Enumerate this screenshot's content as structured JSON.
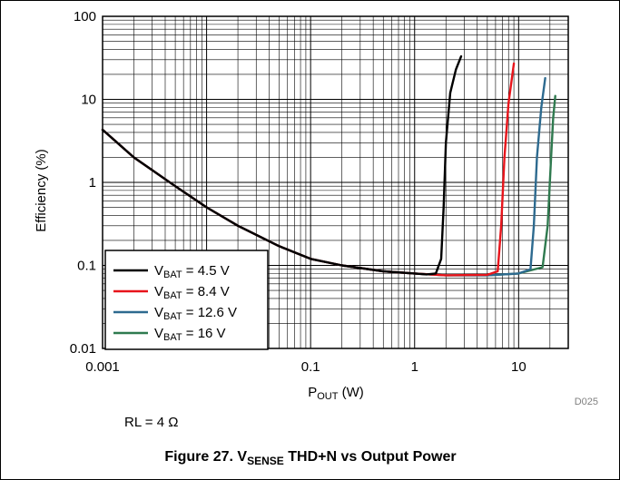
{
  "chart_data": {
    "type": "line",
    "x_scale": "log",
    "y_scale": "log",
    "xlim": [
      0.001,
      30
    ],
    "ylim": [
      0.01,
      100
    ],
    "grid": true,
    "legend_position": "bottom-left",
    "x_ticks": [
      "0.001",
      "0.1",
      "1",
      "10"
    ],
    "y_ticks": [
      "100",
      "10",
      "1",
      "0.1",
      "0.01"
    ],
    "xlabel": {
      "main": "P",
      "sub": "OUT",
      "rest": " (W)"
    },
    "ylabel": "Efficiency (%)",
    "code": "D025",
    "note": "RL = 4 Ω",
    "caption": {
      "pre": "Figure 27. V",
      "sub": "SENSE",
      "post": " THD+N vs Output Power"
    },
    "series": [
      {
        "name": {
          "main": "V",
          "sub": "BAT",
          "rest": " = 4.5 V"
        },
        "color": "#000000",
        "x": [
          0.001,
          0.002,
          0.005,
          0.01,
          0.02,
          0.05,
          0.1,
          0.2,
          0.5,
          1,
          1.3,
          1.6,
          1.8,
          1.9,
          2.0,
          2.2,
          2.5,
          2.8
        ],
        "y": [
          4.3,
          2.0,
          0.9,
          0.5,
          0.3,
          0.17,
          0.12,
          0.1,
          0.085,
          0.08,
          0.078,
          0.08,
          0.12,
          0.5,
          3.0,
          12,
          23,
          33
        ]
      },
      {
        "name": {
          "main": "V",
          "sub": "BAT",
          "rest": " = 8.4 V"
        },
        "color": "#e8141b",
        "x": [
          0.001,
          0.002,
          0.005,
          0.01,
          0.02,
          0.05,
          0.1,
          0.2,
          0.5,
          1,
          2,
          5,
          6.3,
          6.8,
          7.3,
          8,
          9
        ],
        "y": [
          4.3,
          2.0,
          0.9,
          0.5,
          0.3,
          0.17,
          0.12,
          0.1,
          0.085,
          0.08,
          0.076,
          0.077,
          0.085,
          0.3,
          2.0,
          9,
          27
        ]
      },
      {
        "name": {
          "main": "V",
          "sub": "BAT",
          "rest": " = 12.6 V"
        },
        "color": "#2d6a8f",
        "x": [
          0.001,
          0.002,
          0.005,
          0.01,
          0.02,
          0.05,
          0.1,
          0.2,
          0.5,
          1,
          2,
          5,
          10,
          13,
          14,
          15,
          16.5,
          18
        ],
        "y": [
          4.3,
          2.0,
          0.9,
          0.5,
          0.3,
          0.17,
          0.12,
          0.1,
          0.085,
          0.08,
          0.076,
          0.076,
          0.08,
          0.09,
          0.3,
          2.0,
          8,
          18
        ]
      },
      {
        "name": {
          "main": "V",
          "sub": "BAT",
          "rest": " = 16 V"
        },
        "color": "#2f7a4f",
        "x": [
          0.001,
          0.002,
          0.005,
          0.01,
          0.02,
          0.05,
          0.1,
          0.2,
          0.5,
          1,
          2,
          5,
          10,
          17,
          19,
          20.5,
          21.5,
          22.5
        ],
        "y": [
          4.3,
          2.0,
          0.9,
          0.5,
          0.3,
          0.17,
          0.12,
          0.1,
          0.085,
          0.08,
          0.076,
          0.076,
          0.08,
          0.095,
          0.3,
          2.0,
          6,
          11
        ]
      }
    ]
  }
}
